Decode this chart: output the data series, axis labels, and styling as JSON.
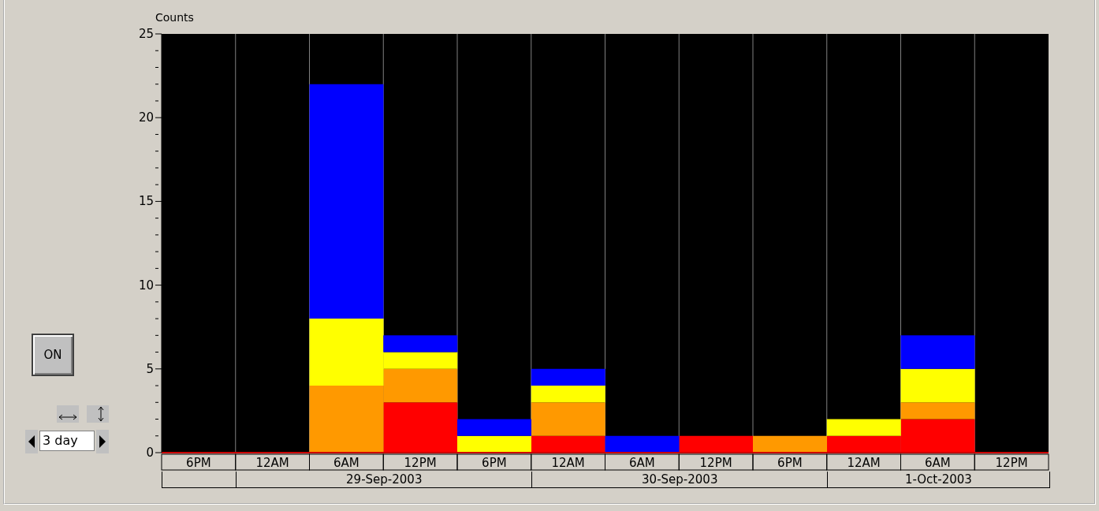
{
  "chart_data": {
    "type": "bar",
    "stacked": true,
    "ylabel": "Counts",
    "categories": [
      "6PM",
      "12AM",
      "6AM",
      "12PM",
      "6PM",
      "12AM",
      "6AM",
      "12PM",
      "6PM",
      "12AM",
      "6AM",
      "12PM"
    ],
    "series": [
      {
        "color": "#ff0000",
        "values": [
          null,
          null,
          null,
          3,
          null,
          1,
          null,
          1,
          null,
          1,
          2,
          null
        ]
      },
      {
        "color": "#ff9900",
        "values": [
          null,
          null,
          4,
          2,
          null,
          2,
          null,
          null,
          1,
          null,
          1,
          null
        ]
      },
      {
        "color": "#ffff00",
        "values": [
          null,
          null,
          4,
          1,
          1,
          1,
          null,
          null,
          null,
          1,
          2,
          null
        ]
      },
      {
        "color": "#0000ff",
        "values": [
          null,
          null,
          14,
          1,
          1,
          1,
          1,
          null,
          null,
          null,
          2,
          null
        ]
      }
    ],
    "ylim": [
      0,
      25
    ],
    "yticks": [
      0,
      {
        "value": 1,
        "label": null
      },
      {
        "value": 2,
        "label": null
      },
      {
        "value": 3,
        "label": null
      },
      {
        "value": 4,
        "label": null
      },
      5,
      {
        "value": 6,
        "label": null
      },
      {
        "value": 7,
        "label": null
      },
      {
        "value": 8,
        "label": null
      },
      {
        "value": 9,
        "label": null
      },
      10,
      {
        "value": 11,
        "label": null
      },
      {
        "value": 12,
        "label": null
      },
      {
        "value": 13,
        "label": null
      },
      {
        "value": 14,
        "label": null
      },
      15,
      {
        "value": 16,
        "label": null
      },
      {
        "value": 17,
        "label": null
      },
      {
        "value": 18,
        "label": null
      },
      {
        "value": 19,
        "label": null
      },
      20,
      {
        "value": 21,
        "label": null
      },
      {
        "value": 22,
        "label": null
      },
      {
        "value": 23,
        "label": null
      },
      {
        "value": 24,
        "label": null
      },
      25
    ],
    "grid": "x",
    "legend": false,
    "annotations": [
      "29-Sep-2003",
      "30-Sep-2003",
      "1-Oct-2003",
      "ON",
      "3 day"
    ]
  }
}
